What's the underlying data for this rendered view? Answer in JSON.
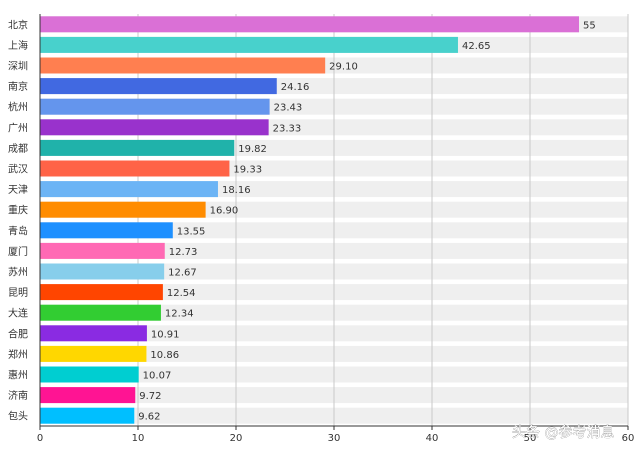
{
  "chart_data": {
    "type": "bar",
    "orientation": "horizontal",
    "categories": [
      "北京",
      "上海",
      "深圳",
      "南京",
      "杭州",
      "广州",
      "成都",
      "武汉",
      "天津",
      "重庆",
      "青岛",
      "厦门",
      "苏州",
      "昆明",
      "大连",
      "合肥",
      "郑州",
      "惠州",
      "济南",
      "包头"
    ],
    "values": [
      55,
      42.65,
      29.1,
      24.16,
      23.43,
      23.33,
      19.82,
      19.33,
      18.16,
      16.9,
      13.55,
      12.73,
      12.67,
      12.54,
      12.34,
      10.91,
      10.86,
      10.07,
      9.72,
      9.62
    ],
    "value_labels": [
      "55",
      "42.65",
      "29.10",
      "24.16",
      "23.43",
      "23.33",
      "19.82",
      "19.33",
      "18.16",
      "16.90",
      "13.55",
      "12.73",
      "12.67",
      "12.54",
      "12.34",
      "10.91",
      "10.86",
      "10.07",
      "9.72",
      "9.62"
    ],
    "colors": [
      "#DA70D6",
      "#48D1CC",
      "#FF7F50",
      "#4169E1",
      "#6495ED",
      "#9932CC",
      "#20B2AA",
      "#FF6347",
      "#6CB4F5",
      "#FF8C00",
      "#1E90FF",
      "#FF69B4",
      "#87CEEB",
      "#FF4500",
      "#32CD32",
      "#8A2BE2",
      "#FFD700",
      "#00CED1",
      "#FF1493",
      "#00BFFF"
    ],
    "xlim": [
      0,
      60
    ],
    "xticks": [
      "0",
      "10",
      "20",
      "30",
      "40",
      "50",
      "60"
    ],
    "grid": true,
    "title": "",
    "xlabel": "",
    "ylabel": ""
  },
  "watermark": "头条 @参考消息"
}
